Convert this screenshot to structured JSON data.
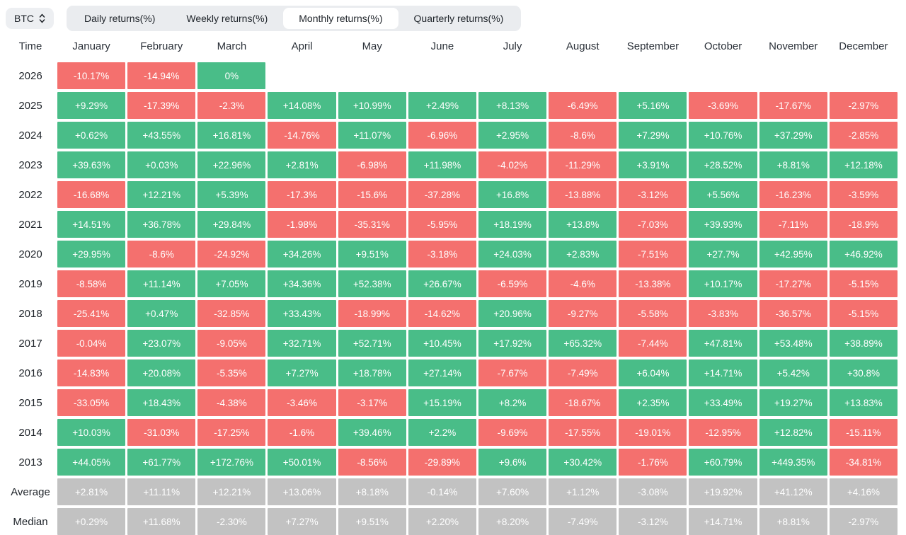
{
  "header": {
    "symbol_selector": {
      "label": "BTC",
      "icon": "updown-caret-icon"
    },
    "tabs": [
      {
        "label": "Daily returns(%)",
        "active": false
      },
      {
        "label": "Weekly returns(%)",
        "active": false
      },
      {
        "label": "Monthly returns(%)",
        "active": true
      },
      {
        "label": "Quarterly returns(%)",
        "active": false
      }
    ]
  },
  "colors": {
    "positive": "#49bd88",
    "negative": "#f4706e",
    "summary": "#c2c2c2"
  },
  "chart_data": {
    "type": "heatmap",
    "title": "BTC Monthly returns(%)",
    "time_header": "Time",
    "months": [
      "January",
      "February",
      "March",
      "April",
      "May",
      "June",
      "July",
      "August",
      "September",
      "October",
      "November",
      "December"
    ],
    "rows": [
      {
        "label": "2026",
        "type": "year",
        "values": [
          "-10.17%",
          "-14.94%",
          "0%",
          "",
          "",
          "",
          "",
          "",
          "",
          "",
          "",
          ""
        ]
      },
      {
        "label": "2025",
        "type": "year",
        "values": [
          "+9.29%",
          "-17.39%",
          "-2.3%",
          "+14.08%",
          "+10.99%",
          "+2.49%",
          "+8.13%",
          "-6.49%",
          "+5.16%",
          "-3.69%",
          "-17.67%",
          "-2.97%"
        ]
      },
      {
        "label": "2024",
        "type": "year",
        "values": [
          "+0.62%",
          "+43.55%",
          "+16.81%",
          "-14.76%",
          "+11.07%",
          "-6.96%",
          "+2.95%",
          "-8.6%",
          "+7.29%",
          "+10.76%",
          "+37.29%",
          "-2.85%"
        ]
      },
      {
        "label": "2023",
        "type": "year",
        "values": [
          "+39.63%",
          "+0.03%",
          "+22.96%",
          "+2.81%",
          "-6.98%",
          "+11.98%",
          "-4.02%",
          "-11.29%",
          "+3.91%",
          "+28.52%",
          "+8.81%",
          "+12.18%"
        ]
      },
      {
        "label": "2022",
        "type": "year",
        "values": [
          "-16.68%",
          "+12.21%",
          "+5.39%",
          "-17.3%",
          "-15.6%",
          "-37.28%",
          "+16.8%",
          "-13.88%",
          "-3.12%",
          "+5.56%",
          "-16.23%",
          "-3.59%"
        ]
      },
      {
        "label": "2021",
        "type": "year",
        "values": [
          "+14.51%",
          "+36.78%",
          "+29.84%",
          "-1.98%",
          "-35.31%",
          "-5.95%",
          "+18.19%",
          "+13.8%",
          "-7.03%",
          "+39.93%",
          "-7.11%",
          "-18.9%"
        ]
      },
      {
        "label": "2020",
        "type": "year",
        "values": [
          "+29.95%",
          "-8.6%",
          "-24.92%",
          "+34.26%",
          "+9.51%",
          "-3.18%",
          "+24.03%",
          "+2.83%",
          "-7.51%",
          "+27.7%",
          "+42.95%",
          "+46.92%"
        ]
      },
      {
        "label": "2019",
        "type": "year",
        "values": [
          "-8.58%",
          "+11.14%",
          "+7.05%",
          "+34.36%",
          "+52.38%",
          "+26.67%",
          "-6.59%",
          "-4.6%",
          "-13.38%",
          "+10.17%",
          "-17.27%",
          "-5.15%"
        ]
      },
      {
        "label": "2018",
        "type": "year",
        "values": [
          "-25.41%",
          "+0.47%",
          "-32.85%",
          "+33.43%",
          "-18.99%",
          "-14.62%",
          "+20.96%",
          "-9.27%",
          "-5.58%",
          "-3.83%",
          "-36.57%",
          "-5.15%"
        ]
      },
      {
        "label": "2017",
        "type": "year",
        "values": [
          "-0.04%",
          "+23.07%",
          "-9.05%",
          "+32.71%",
          "+52.71%",
          "+10.45%",
          "+17.92%",
          "+65.32%",
          "-7.44%",
          "+47.81%",
          "+53.48%",
          "+38.89%"
        ]
      },
      {
        "label": "2016",
        "type": "year",
        "values": [
          "-14.83%",
          "+20.08%",
          "-5.35%",
          "+7.27%",
          "+18.78%",
          "+27.14%",
          "-7.67%",
          "-7.49%",
          "+6.04%",
          "+14.71%",
          "+5.42%",
          "+30.8%"
        ]
      },
      {
        "label": "2015",
        "type": "year",
        "values": [
          "-33.05%",
          "+18.43%",
          "-4.38%",
          "-3.46%",
          "-3.17%",
          "+15.19%",
          "+8.2%",
          "-18.67%",
          "+2.35%",
          "+33.49%",
          "+19.27%",
          "+13.83%"
        ]
      },
      {
        "label": "2014",
        "type": "year",
        "values": [
          "+10.03%",
          "-31.03%",
          "-17.25%",
          "-1.6%",
          "+39.46%",
          "+2.2%",
          "-9.69%",
          "-17.55%",
          "-19.01%",
          "-12.95%",
          "+12.82%",
          "-15.11%"
        ]
      },
      {
        "label": "2013",
        "type": "year",
        "values": [
          "+44.05%",
          "+61.77%",
          "+172.76%",
          "+50.01%",
          "-8.56%",
          "-29.89%",
          "+9.6%",
          "+30.42%",
          "-1.76%",
          "+60.79%",
          "+449.35%",
          "-34.81%"
        ]
      },
      {
        "label": "Average",
        "type": "summary",
        "values": [
          "+2.81%",
          "+11.11%",
          "+12.21%",
          "+13.06%",
          "+8.18%",
          "-0.14%",
          "+7.60%",
          "+1.12%",
          "-3.08%",
          "+19.92%",
          "+41.12%",
          "+4.16%"
        ]
      },
      {
        "label": "Median",
        "type": "summary",
        "values": [
          "+0.29%",
          "+11.68%",
          "-2.30%",
          "+7.27%",
          "+9.51%",
          "+2.20%",
          "+8.20%",
          "-7.49%",
          "-3.12%",
          "+14.71%",
          "+8.81%",
          "-2.97%"
        ]
      }
    ]
  }
}
